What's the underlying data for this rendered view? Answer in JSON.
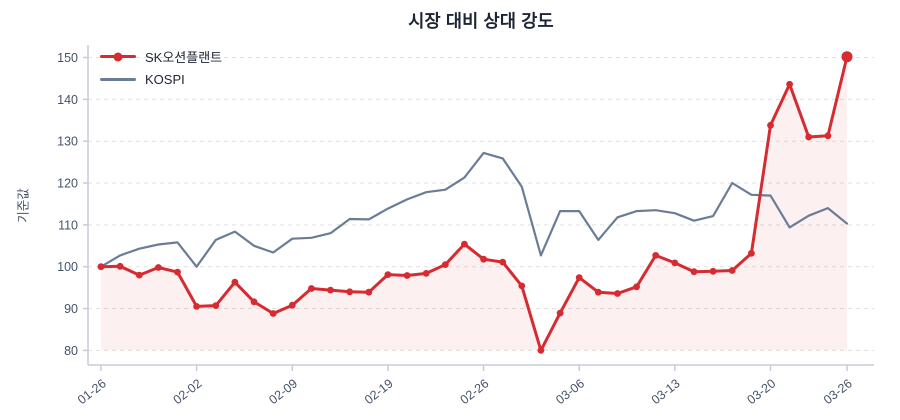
{
  "colors": {
    "background": "#ffffff",
    "title": "#1d2433",
    "tick_label": "#46536a",
    "axis": "#c7ccd4",
    "gridline": "#e1e1e1",
    "fill_under_sk": "rgba(214,43,48,0.07)"
  },
  "chart_data": {
    "type": "line",
    "title": "시장 대비 상대 강도",
    "xlabel": "",
    "ylabel": "기준값",
    "grid": "horizontal-dashed",
    "legend_position": "top-left",
    "n_points": 40,
    "ylim": [
      76.5,
      153
    ],
    "y_ticks": [
      80,
      90,
      100,
      110,
      120,
      130,
      140,
      150
    ],
    "x_tick_indices": [
      0,
      5,
      10,
      15,
      20,
      25,
      30,
      35,
      39
    ],
    "x_tick_labels": [
      "01-26",
      "02-02",
      "02-09",
      "02-19",
      "02-26",
      "03-06",
      "03-13",
      "03-20",
      "03-26"
    ],
    "series": [
      {
        "name": "SK오션플랜트",
        "color": "#d62b30",
        "marker": "circle",
        "line_width": 3,
        "fill_to_baseline": 80,
        "emphasized_last_point": true,
        "values": [
          100.0,
          100.1,
          98.0,
          99.8,
          98.7,
          90.5,
          90.7,
          96.3,
          91.6,
          88.8,
          90.8,
          94.8,
          94.4,
          94.0,
          93.9,
          98.1,
          97.9,
          98.4,
          100.5,
          105.4,
          101.8,
          101.1,
          95.4,
          80.0,
          88.9,
          97.4,
          93.9,
          93.6,
          95.2,
          102.7,
          100.9,
          98.8,
          98.9,
          99.1,
          103.2,
          133.8,
          143.6,
          131.0,
          131.3,
          150.2
        ]
      },
      {
        "name": "KOSPI",
        "color": "#6b7d96",
        "marker": "none",
        "line_width": 2.2,
        "values": [
          100.0,
          102.7,
          104.3,
          105.3,
          105.8,
          100.0,
          106.4,
          108.4,
          105.0,
          103.4,
          106.7,
          106.9,
          108.0,
          111.4,
          111.3,
          113.9,
          116.1,
          117.8,
          118.4,
          121.3,
          127.2,
          125.9,
          119.1,
          102.7,
          113.3,
          113.3,
          106.4,
          111.8,
          113.3,
          113.5,
          112.8,
          111.0,
          112.1,
          120.0,
          117.2,
          117.0,
          109.4,
          112.2,
          114.0,
          110.3
        ]
      }
    ]
  }
}
